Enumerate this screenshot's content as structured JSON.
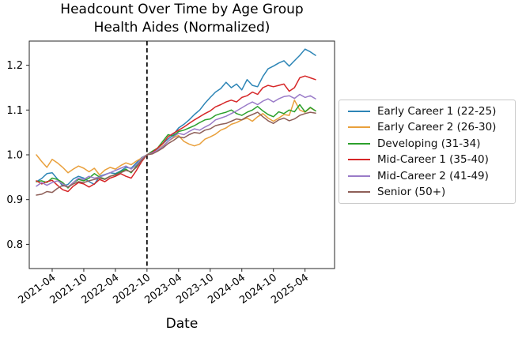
{
  "chart_data": {
    "type": "line",
    "title": "Headcount Over Time by Age Group",
    "subtitle": "Health Aides (Normalized)",
    "xlabel": "Date",
    "ylabel": "",
    "grid": false,
    "legend_position": "right-outside",
    "ylim": [
      0.746,
      1.254
    ],
    "y_tick_labels": [
      "0.8",
      "0.9",
      "1.0",
      "1.1",
      "1.2"
    ],
    "x_tick_labels": [
      "2021-04",
      "2021-10",
      "2022-04",
      "2022-10",
      "2023-04",
      "2023-10",
      "2024-04",
      "2024-10",
      "2025-04"
    ],
    "normalization_vline": {
      "x": "2022-10",
      "style": "dashed",
      "color": "#000000"
    },
    "x": [
      "2021-01",
      "2021-02",
      "2021-03",
      "2021-04",
      "2021-05",
      "2021-06",
      "2021-07",
      "2021-08",
      "2021-09",
      "2021-10",
      "2021-11",
      "2021-12",
      "2022-01",
      "2022-02",
      "2022-03",
      "2022-04",
      "2022-05",
      "2022-06",
      "2022-07",
      "2022-08",
      "2022-09",
      "2022-10",
      "2022-11",
      "2022-12",
      "2023-01",
      "2023-02",
      "2023-03",
      "2023-04",
      "2023-05",
      "2023-06",
      "2023-07",
      "2023-08",
      "2023-09",
      "2023-10",
      "2023-11",
      "2023-12",
      "2024-01",
      "2024-02",
      "2024-03",
      "2024-04",
      "2024-05",
      "2024-06",
      "2024-07",
      "2024-08",
      "2024-09",
      "2024-10",
      "2024-11",
      "2024-12",
      "2025-01",
      "2025-02",
      "2025-03",
      "2025-04",
      "2025-05",
      "2025-06"
    ],
    "series": [
      {
        "name": "Early Career 1 (22-25)",
        "color": "#2d85b6",
        "values": [
          0.94,
          0.947,
          0.958,
          0.96,
          0.946,
          0.93,
          0.934,
          0.946,
          0.952,
          0.948,
          0.94,
          0.934,
          0.952,
          0.956,
          0.96,
          0.958,
          0.964,
          0.972,
          0.97,
          0.982,
          0.994,
          1.0,
          1.006,
          1.014,
          1.025,
          1.035,
          1.045,
          1.06,
          1.068,
          1.078,
          1.09,
          1.1,
          1.115,
          1.128,
          1.14,
          1.148,
          1.162,
          1.15,
          1.158,
          1.145,
          1.168,
          1.155,
          1.152,
          1.175,
          1.192,
          1.198,
          1.205,
          1.21,
          1.198,
          1.21,
          1.222,
          1.236,
          1.23,
          1.222
        ]
      },
      {
        "name": "Early Career 2 (26-30)",
        "color": "#e9a03c",
        "values": [
          1.0,
          0.985,
          0.972,
          0.99,
          0.982,
          0.972,
          0.96,
          0.968,
          0.975,
          0.97,
          0.962,
          0.97,
          0.955,
          0.966,
          0.972,
          0.968,
          0.976,
          0.982,
          0.978,
          0.986,
          0.993,
          1.0,
          1.005,
          1.01,
          1.02,
          1.03,
          1.038,
          1.043,
          1.03,
          1.024,
          1.02,
          1.024,
          1.035,
          1.04,
          1.046,
          1.055,
          1.06,
          1.068,
          1.072,
          1.078,
          1.082,
          1.075,
          1.085,
          1.092,
          1.082,
          1.075,
          1.082,
          1.09,
          1.088,
          1.122,
          1.1,
          1.095,
          1.105,
          1.098
        ]
      },
      {
        "name": "Developing (31-34)",
        "color": "#2ca02c",
        "values": [
          0.94,
          0.942,
          0.938,
          0.948,
          0.945,
          0.938,
          0.926,
          0.938,
          0.945,
          0.942,
          0.948,
          0.958,
          0.95,
          0.946,
          0.952,
          0.956,
          0.962,
          0.968,
          0.96,
          0.975,
          0.99,
          1.0,
          1.008,
          1.015,
          1.03,
          1.045,
          1.042,
          1.052,
          1.055,
          1.06,
          1.065,
          1.072,
          1.078,
          1.08,
          1.088,
          1.092,
          1.095,
          1.1,
          1.092,
          1.088,
          1.095,
          1.1,
          1.108,
          1.098,
          1.09,
          1.085,
          1.096,
          1.092,
          1.1,
          1.096,
          1.112,
          1.096,
          1.106,
          1.098
        ]
      },
      {
        "name": "Mid-Career 1 (35-40)",
        "color": "#d62728",
        "values": [
          0.942,
          0.935,
          0.94,
          0.943,
          0.932,
          0.922,
          0.918,
          0.93,
          0.938,
          0.935,
          0.928,
          0.935,
          0.945,
          0.94,
          0.948,
          0.952,
          0.958,
          0.952,
          0.948,
          0.965,
          0.985,
          1.0,
          1.005,
          1.015,
          1.025,
          1.04,
          1.048,
          1.055,
          1.062,
          1.07,
          1.078,
          1.085,
          1.092,
          1.098,
          1.107,
          1.112,
          1.118,
          1.122,
          1.118,
          1.128,
          1.132,
          1.14,
          1.135,
          1.15,
          1.155,
          1.152,
          1.155,
          1.158,
          1.142,
          1.15,
          1.172,
          1.176,
          1.172,
          1.168
        ]
      },
      {
        "name": "Mid-Career 2 (41-49)",
        "color": "#9a7bc8",
        "values": [
          0.93,
          0.938,
          0.932,
          0.938,
          0.942,
          0.935,
          0.928,
          0.938,
          0.948,
          0.945,
          0.952,
          0.948,
          0.95,
          0.955,
          0.96,
          0.965,
          0.97,
          0.975,
          0.968,
          0.978,
          0.992,
          1.0,
          1.004,
          1.01,
          1.018,
          1.03,
          1.04,
          1.048,
          1.045,
          1.052,
          1.058,
          1.055,
          1.062,
          1.068,
          1.078,
          1.082,
          1.086,
          1.092,
          1.098,
          1.105,
          1.112,
          1.118,
          1.112,
          1.12,
          1.125,
          1.118,
          1.125,
          1.13,
          1.132,
          1.126,
          1.135,
          1.128,
          1.132,
          1.125
        ]
      },
      {
        "name": "Senior (50+)",
        "color": "#8e5f58",
        "values": [
          0.91,
          0.912,
          0.918,
          0.916,
          0.925,
          0.932,
          0.928,
          0.935,
          0.94,
          0.938,
          0.942,
          0.945,
          0.948,
          0.945,
          0.952,
          0.955,
          0.96,
          0.965,
          0.962,
          0.972,
          0.988,
          1.0,
          1.002,
          1.008,
          1.015,
          1.025,
          1.032,
          1.04,
          1.038,
          1.045,
          1.05,
          1.048,
          1.055,
          1.058,
          1.065,
          1.068,
          1.07,
          1.075,
          1.08,
          1.078,
          1.085,
          1.09,
          1.095,
          1.085,
          1.076,
          1.07,
          1.078,
          1.082,
          1.076,
          1.08,
          1.088,
          1.092,
          1.095,
          1.093
        ]
      }
    ]
  }
}
